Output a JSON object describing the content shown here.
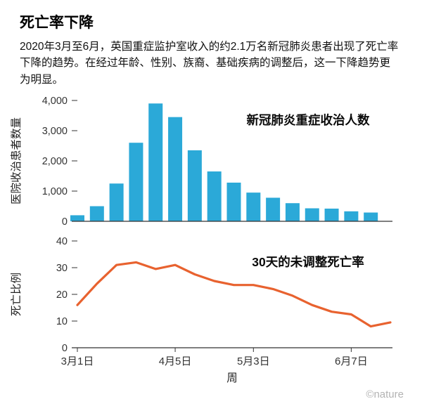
{
  "header": {
    "title": "死亡率下降",
    "description": "2020年3月至6月，英国重症监护室收入的约2.1万名新冠肺炎患者出现了死亡率下降的趋势。在经过年龄、性别、族裔、基础疾病的调整后，这一下降趋势更为明显。"
  },
  "colors": {
    "bar": "#2BA9D8",
    "line": "#E8622F",
    "axis": "#333333"
  },
  "footer": {
    "credit": "©nature"
  },
  "chart_data": [
    {
      "type": "bar",
      "annotation": "新冠肺炎重症收治人数",
      "ylabel": "医院收治患者数量",
      "yticks": [
        0,
        1000,
        2000,
        3000,
        4000
      ],
      "ylim": [
        0,
        4000
      ],
      "x_weeks": [
        0,
        1,
        2,
        3,
        4,
        5,
        6,
        7,
        8,
        9,
        10,
        11,
        12,
        13,
        14,
        15
      ],
      "values": [
        200,
        500,
        1250,
        2600,
        3900,
        3450,
        2350,
        1650,
        1280,
        950,
        780,
        600,
        430,
        420,
        330,
        290
      ],
      "grid": false,
      "legend": "none"
    },
    {
      "type": "line",
      "annotation": "30天的未调整死亡率",
      "ylabel": "死亡比例",
      "xlabel": "周",
      "yticks": [
        0,
        10,
        20,
        30,
        40
      ],
      "ylim": [
        0,
        40
      ],
      "x_weeks": [
        0,
        1,
        2,
        3,
        4,
        5,
        6,
        7,
        8,
        9,
        10,
        11,
        12,
        13,
        14,
        15,
        16
      ],
      "values": [
        16,
        24,
        31,
        32,
        29.5,
        31,
        27.5,
        25,
        23.5,
        23.5,
        22,
        19.5,
        16,
        13.5,
        12.5,
        8,
        9.5
      ],
      "xtick_weeks": [
        0,
        5,
        9,
        14
      ],
      "xtick_labels": [
        "3月1日",
        "4月5日",
        "5月3日",
        "6月7日"
      ],
      "grid": false,
      "legend": "none"
    }
  ]
}
